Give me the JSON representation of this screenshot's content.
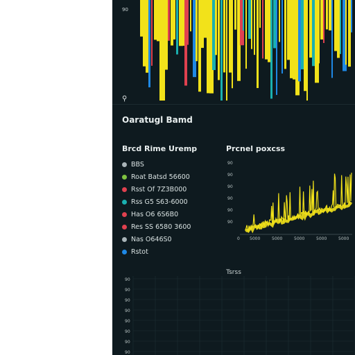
{
  "dashboard": {
    "title": "Oaratugl Bamd",
    "top_chart_tick": "90",
    "pin_glyph": "⚲"
  },
  "legend": {
    "title": "Brcd Rime Uremp",
    "items": [
      {
        "label": "BBS",
        "color": "#a9b4b8"
      },
      {
        "label": "Roat Batsd 56600",
        "color": "#7fc241"
      },
      {
        "label": "Rsst Of 7Z3B000",
        "color": "#e0414f"
      },
      {
        "label": "Rss G5 S63-6000",
        "color": "#1ab0b0"
      },
      {
        "label": "Has O6 6S6B0",
        "color": "#e0414f"
      },
      {
        "label": "Res SS 6580 3600",
        "color": "#e0414f"
      },
      {
        "label": "Nas O646S0",
        "color": "#a9b4b8"
      },
      {
        "label": "Rstot",
        "color": "#1e88e5"
      }
    ]
  },
  "mini_chart": {
    "title": "Prcnel poxcss",
    "y_ticks": [
      "90",
      "90",
      "90",
      "90",
      "90",
      "90"
    ],
    "x_ticks": [
      "5000",
      "5000",
      "5000",
      "5000",
      "5000"
    ],
    "origin_label": "0"
  },
  "bottom_chart": {
    "title": "Tsrss",
    "y_ticks": [
      "90",
      "90",
      "90",
      "90",
      "90",
      "90",
      "90",
      "90"
    ]
  },
  "colors": {
    "panel_bg": "#0e1a1f",
    "yellow": "#f2e21a",
    "blue": "#1e88e5",
    "red": "#e0414f",
    "teal": "#1ab0b0",
    "grid": "#1f2e34"
  }
}
